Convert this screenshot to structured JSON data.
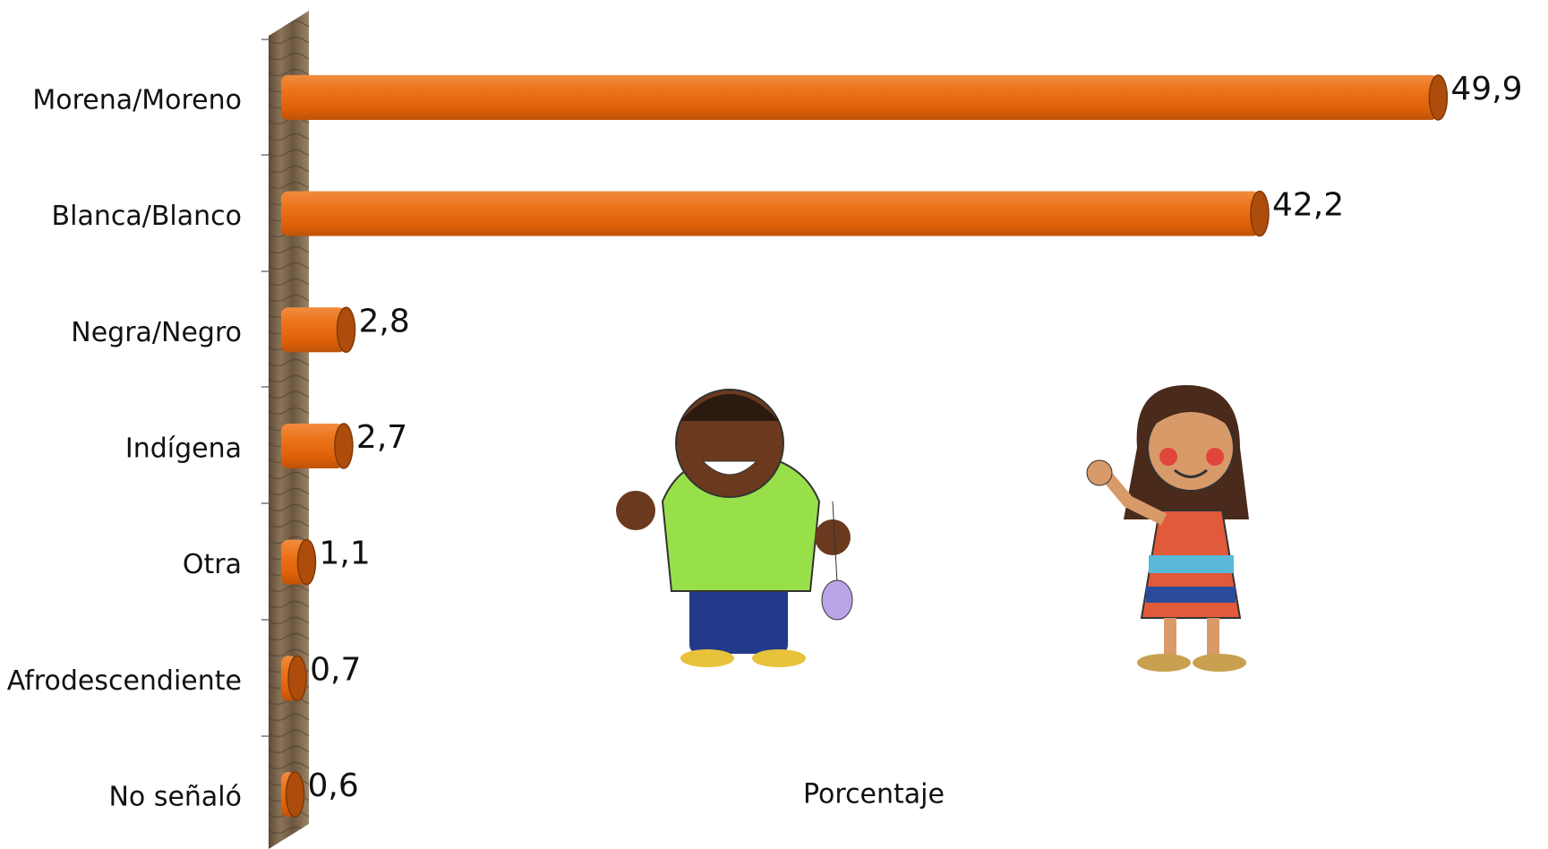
{
  "chart_data": {
    "type": "bar",
    "orientation": "horizontal",
    "x_label": "Porcentaje",
    "categories": [
      "Morena/Moreno",
      "Blanca/Blanco",
      "Negra/Negro",
      "Indígena",
      "Otra",
      "Afrodescendiente",
      "No señaló"
    ],
    "values": [
      49.9,
      42.2,
      2.8,
      2.7,
      1.1,
      0.7,
      0.6
    ],
    "value_labels": [
      "49,9",
      "42,2",
      "2,8",
      "2,7",
      "1,1",
      "0,7",
      "0,6"
    ],
    "color": "#e8670f"
  }
}
